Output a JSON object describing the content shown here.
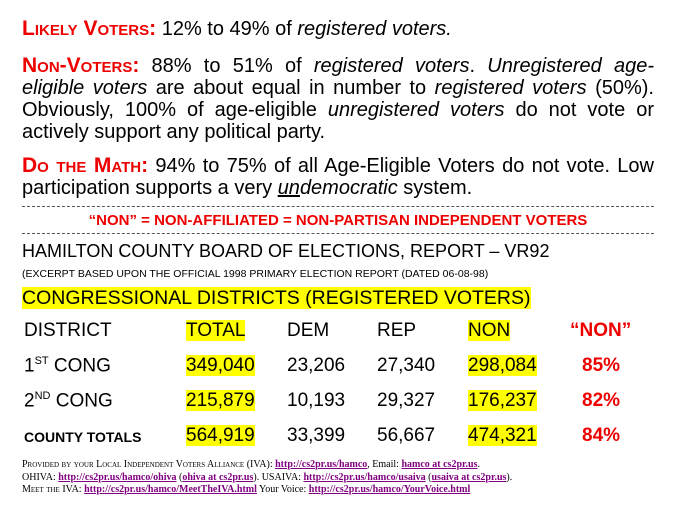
{
  "paragraphs": [
    {
      "lead": "Likely Voters:",
      "runs": [
        " 12% to 49% of ",
        "registered voters."
      ]
    },
    {
      "lead": "Non-Voters:",
      "runs": [
        " 88% to 51% of ",
        "registered voters",
        ". ",
        "Unregistered age-eligible voters",
        " are about equal in number to ",
        "registered voters",
        " (50%). Obviously, 100% of age-eligible ",
        "unregistered voters",
        " do not vote or actively support any political party."
      ]
    },
    {
      "lead": "Do the Math:",
      "runs": [
        " 94% to 75% of all Age-Eligible Voters do not vote. Low participation supports a very ",
        "un",
        "democratic",
        " system."
      ]
    }
  ],
  "banner": "“NON” = NON-AFFILIATED = NON-PARTISAN INDEPENDENT VOTERS",
  "report": {
    "title": "HAMILTON COUNTY BOARD OF ELECTIONS, REPORT – VR92",
    "note": "(EXCERPT BASED UPON THE OFFICIAL 1998 PRIMARY ELECTION REPORT (DATED 06-08-98)",
    "table_title": "CONGRESSIONAL DISTRICTS (REGISTERED VOTERS)"
  },
  "table": {
    "headers": [
      "DISTRICT",
      "TOTAL",
      "DEM",
      "REP",
      "NON",
      "“NON”"
    ],
    "rows": [
      {
        "district": [
          "1",
          "ST",
          " CONG"
        ],
        "cells": [
          "349,040",
          "23,206",
          "27,340",
          "298,084",
          "85%"
        ]
      },
      {
        "district": [
          "2",
          "ND",
          " CONG"
        ],
        "cells": [
          "215,879",
          "10,193",
          "29,327",
          "176,237",
          "82%"
        ]
      },
      {
        "district": [
          "COUNTY TOTALS"
        ],
        "cells": [
          "564,919",
          "33,399",
          "56,667",
          "474,321",
          "84%"
        ]
      }
    ]
  },
  "footer": [
    [
      "Provided by your Local Independent Voters Alliance (IVA): ",
      "http://cs2pr.us/hamco",
      ", Email: ",
      "hamco at cs2pr.us",
      "."
    ],
    [
      "OHIVA: ",
      "http://cs2pr.us/hamco/ohiva",
      " (",
      "ohiva at cs2pr.us",
      "). USAIVA: ",
      "http://cs2pr.us/hamco/usaiva",
      " (",
      "usaiva at cs2pr.us",
      ")."
    ],
    [
      "Meet the IVA: ",
      "http://cs2pr.us/hamco/MeetTheIVA.html",
      " Your Voice: ",
      "http://cs2pr.us/hamco/YourVoice.html"
    ]
  ]
}
